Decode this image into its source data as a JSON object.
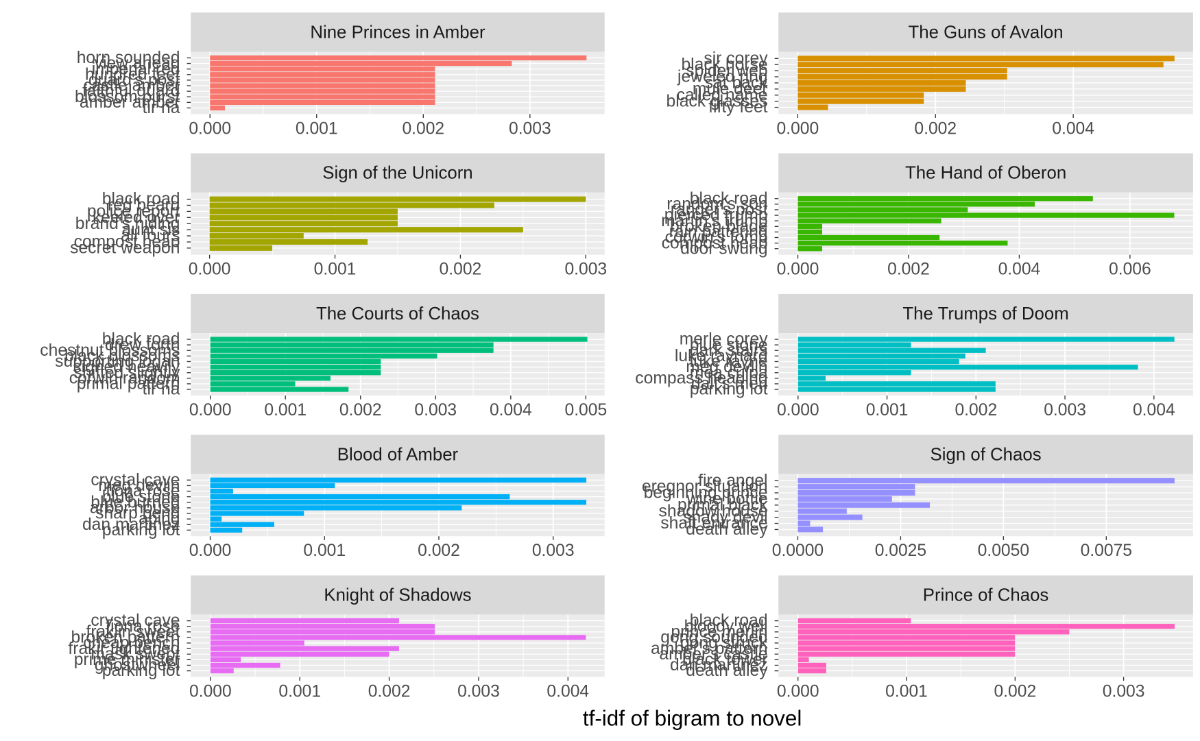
{
  "x_label": "tf-idf of bigram to novel",
  "chart_data": [
    {
      "type": "bar",
      "orientation": "horizontal",
      "title": "Nine Princes in Amber",
      "color": "#F8766D",
      "categories": [
        "horn sounded",
        "view ahead",
        "imperial red",
        "hundred feet",
        "guard's post",
        "castle amber",
        "faithful guard",
        "blossom burst",
        "amber amber",
        "tir na"
      ],
      "values": [
        0.00353,
        0.00283,
        0.00211,
        0.00211,
        0.00211,
        0.00211,
        0.00211,
        0.00211,
        0.00211,
        0.00014
      ],
      "xlim": [
        -0.00018,
        0.0037
      ],
      "xticks": [
        {
          "value": 0,
          "label": "0.000"
        },
        0.001,
        0.002,
        0.003
      ]
    },
    {
      "type": "bar",
      "orientation": "horizontal",
      "title": "The Guns of Avalon",
      "color": "#D89000",
      "categories": [
        "sir corey",
        "black horse",
        "spider web",
        "jeweled ring",
        "sat back",
        "mule deer",
        "called name",
        "black glasses",
        "fifty feet"
      ],
      "values": [
        0.00547,
        0.00531,
        0.00304,
        0.00304,
        0.00244,
        0.00244,
        0.00183,
        0.00183,
        0.00044
      ],
      "xlim": [
        -0.00028,
        0.00574
      ],
      "xticks": [
        {
          "value": 0,
          "label": "0.000"
        },
        0.002,
        0.004
      ]
    },
    {
      "type": "bar",
      "orientation": "horizontal",
      "title": "Sign of the Unicorn",
      "color": "#A3A500",
      "categories": [
        "black road",
        "red beard",
        "police report",
        "keeled over",
        "brand's hiding",
        "aunt sis",
        "all fours",
        "compost heap",
        "secret weapon"
      ],
      "values": [
        0.003,
        0.00227,
        0.0015,
        0.0015,
        0.0015,
        0.0025,
        0.00075,
        0.00126,
        0.0005
      ],
      "xlim": [
        -0.00015,
        0.00315
      ],
      "xticks": [
        {
          "value": 0,
          "label": "0.000"
        },
        0.001,
        0.002,
        0.003
      ]
    },
    {
      "type": "bar",
      "orientation": "horizontal",
      "title": "The Hand of Oberon",
      "color": "#39B600",
      "categories": [
        "black road",
        "random's son",
        "ranger's post",
        "pierced trump",
        "martin's trump",
        "broken blade",
        "rain pattering",
        "corwin's tomb",
        "compost heap",
        "door swung"
      ],
      "values": [
        0.00533,
        0.00428,
        0.00307,
        0.0068,
        0.00259,
        0.00044,
        0.00044,
        0.00256,
        0.00379,
        0.00044
      ],
      "xlim": [
        -0.00035,
        0.00714
      ],
      "xticks": [
        {
          "value": 0,
          "label": "0.000"
        },
        0.002,
        0.004,
        0.006
      ]
    },
    {
      "type": "bar",
      "orientation": "horizontal",
      "title": "The Courts of Chaos",
      "color": "#00BF7D",
      "categories": [
        "black road",
        "drew forth",
        "chestnut blossoms",
        "black blossoms",
        "supporting logan",
        "sighed heavily",
        "shifted slightly",
        "corwin random",
        "primal pattern",
        "tir na"
      ],
      "values": [
        0.00502,
        0.00377,
        0.00377,
        0.00302,
        0.00227,
        0.00227,
        0.00227,
        0.0016,
        0.00113,
        0.00184
      ],
      "xlim": [
        -0.00026,
        0.00525
      ],
      "xticks": [
        {
          "value": 0,
          "label": "0.000"
        },
        0.001,
        0.002,
        0.003,
        0.004,
        0.005
      ]
    },
    {
      "type": "bar",
      "orientation": "horizontal",
      "title": "The Trumps of Doom",
      "color": "#00BFC4",
      "categories": [
        "merle corey",
        "blue stone",
        "dark stairs",
        "luke raynard",
        "luke rayne",
        "meg devlin",
        "mea culpa",
        "compass heading",
        "dalt's men",
        "parking lot"
      ],
      "values": [
        0.00423,
        0.00127,
        0.00211,
        0.00188,
        0.00181,
        0.00382,
        0.00127,
        0.00031,
        0.00222,
        0.00222
      ],
      "xlim": [
        -0.00022,
        0.00444
      ],
      "xticks": [
        {
          "value": 0,
          "label": "0.000"
        },
        0.001,
        0.002,
        0.003,
        0.004
      ]
    },
    {
      "type": "bar",
      "orientation": "horizontal",
      "title": "Blood of Amber",
      "color": "#00B0F6",
      "categories": [
        "crystal cave",
        "meg devlin",
        "fiona rose",
        "blue stone",
        "blue burned",
        "arbor house",
        "sharp bend",
        "aping",
        "dan martinez",
        "parking lot"
      ],
      "values": [
        0.00329,
        0.00109,
        0.0002,
        0.00262,
        0.00329,
        0.0022,
        0.00082,
        0.0001,
        0.00056,
        0.00028
      ],
      "xlim": [
        -0.00017,
        0.00345
      ],
      "xticks": [
        {
          "value": 0,
          "label": "0.000"
        },
        0.001,
        0.002,
        0.003
      ]
    },
    {
      "type": "bar",
      "orientation": "horizontal",
      "title": "Sign of Chaos",
      "color": "#9590FF",
      "categories": [
        "fire angel",
        "eregnor situation",
        "beginning prince",
        "wine bottle",
        "primal black",
        "shadow house",
        "shady devil",
        "shaft entrance",
        "death alley"
      ],
      "values": [
        0.00916,
        0.00285,
        0.00285,
        0.00229,
        0.00321,
        0.00119,
        0.00157,
        0.0003,
        0.00061
      ],
      "xlim": [
        -0.00047,
        0.00961
      ],
      "xticks": [
        {
          "value": 0,
          "label": "0.0000"
        },
        0.0025,
        {
          "value": 0.005,
          "label": "0.0050"
        },
        0.0075
      ]
    },
    {
      "type": "bar",
      "orientation": "horizontal",
      "title": "Knight of Shadows",
      "color": "#E76BF3",
      "categories": [
        "crystal cave",
        "fiona rose",
        "fraklin sweet",
        "broken pattern",
        "cheap bench",
        "frakir tightened",
        "mask swept",
        "prime minister",
        "ghostwheel",
        "parking lot"
      ],
      "values": [
        0.00211,
        0.00251,
        0.00251,
        0.0042,
        0.00105,
        0.00211,
        0.002,
        0.00034,
        0.00078,
        0.00026
      ],
      "xlim": [
        -0.00022,
        0.00441
      ],
      "xticks": [
        {
          "value": 0,
          "label": "0.000"
        },
        0.001,
        0.002,
        0.003,
        0.004
      ]
    },
    {
      "type": "bar",
      "orientation": "horizontal",
      "title": "Prince of Chaos",
      "color": "#FF62BC",
      "categories": [
        "black road",
        "bloody well",
        "prince merlin",
        "gong sounded",
        "gong struck",
        "amber's pattern",
        "amber's castle",
        "black tower",
        "dan martinez",
        "death alley"
      ],
      "values": [
        0.00104,
        0.00347,
        0.0025,
        0.002,
        0.002,
        0.002,
        0.002,
        0.0001,
        0.00026,
        0.00026
      ],
      "xlim": [
        -0.00018,
        0.00364
      ],
      "xticks": [
        {
          "value": 0,
          "label": "0.000"
        },
        0.001,
        0.002,
        0.003
      ]
    }
  ]
}
